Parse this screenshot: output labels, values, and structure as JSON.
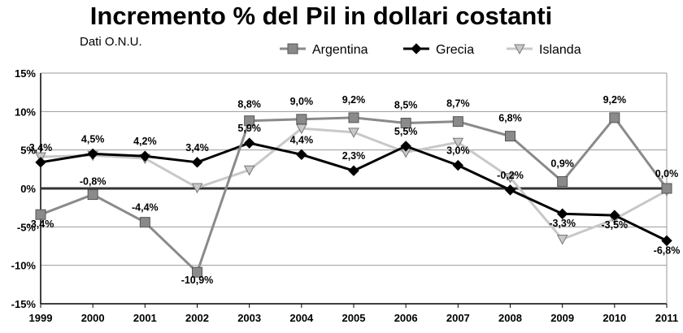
{
  "chart_data": {
    "type": "line",
    "title": "Incremento % del Pil in dollari costanti",
    "subtitle": "Dati O.N.U.",
    "x": [
      "1999",
      "2000",
      "2001",
      "2002",
      "2003",
      "2004",
      "2005",
      "2006",
      "2007",
      "2008",
      "2009",
      "2010",
      "2011"
    ],
    "ylim": [
      -15,
      15
    ],
    "yticks": [
      15,
      10,
      5,
      0,
      -5,
      -10,
      -15
    ],
    "ytick_labels": [
      "15%",
      "10%",
      "5%",
      "0%",
      "-5%",
      "-10%",
      "-15%"
    ],
    "grid": "horizontal",
    "legend_position": "top",
    "series": [
      {
        "name": "Argentina",
        "marker": "square",
        "color": "#8a8a8a",
        "values": [
          -3.4,
          -0.8,
          -4.4,
          -10.9,
          8.8,
          9.0,
          9.2,
          8.5,
          8.7,
          6.8,
          0.9,
          9.2,
          0.0
        ],
        "labels": [
          "-3,4%",
          "-0,8%",
          "-4,4%",
          "-10,9%",
          "8,8%",
          "9,0%",
          "9,2%",
          "8,5%",
          "8,7%",
          "6,8%",
          "0,9%",
          "9,2%",
          "0,0%"
        ]
      },
      {
        "name": "Grecia",
        "marker": "diamond",
        "color": "#000000",
        "values": [
          3.4,
          4.5,
          4.2,
          3.4,
          5.9,
          4.4,
          2.3,
          5.5,
          3.0,
          -0.2,
          -3.3,
          -3.5,
          -6.8
        ],
        "labels": [
          "3,4%",
          "4,5%",
          "4,2%",
          "3,4%",
          "5,9%",
          "4,4%",
          "2,3%",
          "5,5%",
          "3,0%",
          "-0,2%",
          "-3,3%",
          "-3,5%",
          "-6,8%"
        ]
      },
      {
        "name": "Islanda",
        "marker": "triangle-down",
        "color": "#c8c8c8",
        "values": [
          4.1,
          4.3,
          3.9,
          0.1,
          2.4,
          7.8,
          7.3,
          4.7,
          6.0,
          1.4,
          -6.6,
          -4.0,
          -0.3
        ]
      }
    ]
  }
}
